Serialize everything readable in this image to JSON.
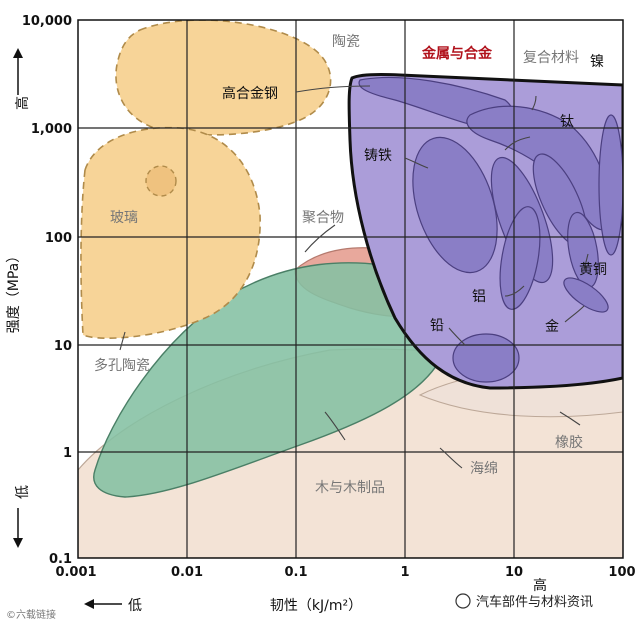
{
  "x_ticks": [
    "0.001",
    "0.01",
    "0.1",
    "1",
    "10",
    "100"
  ],
  "y_ticks": [
    "10,000",
    "1,000",
    "100",
    "10",
    "1",
    "0.1"
  ],
  "x_axis": {
    "title": "韧性（kJ/m²）",
    "low": "低",
    "high": "高"
  },
  "y_axis": {
    "title": "强度（MPa）",
    "high": "高",
    "low": "低"
  },
  "regions": {
    "ceramics": "陶瓷",
    "glass": "玻璃",
    "porous_ceramics": "多孔陶瓷",
    "polymers": "聚合物",
    "wood": "木与木制品",
    "foam": "海绵",
    "rubber": "橡胶",
    "composites": "复合材料",
    "metals": "金属与合金"
  },
  "metals": {
    "high_alloy_steel": "高合金钢",
    "nickel": "镍",
    "titanium": "钛",
    "cast_iron": "铸铁",
    "brass": "黄铜",
    "aluminum": "铝",
    "gold": "金",
    "lead": "铅"
  },
  "watermark": {
    "source": "汽车部件与材料资讯",
    "corner": "©六载链接"
  },
  "colors": {
    "ceramic": "#f7d498",
    "polymer": "#e9a79a",
    "wood": "#7dbe9f",
    "metal": "#ab9dd9",
    "metal_blob": "#8a7ec6",
    "foam": "#f0dccf"
  }
}
